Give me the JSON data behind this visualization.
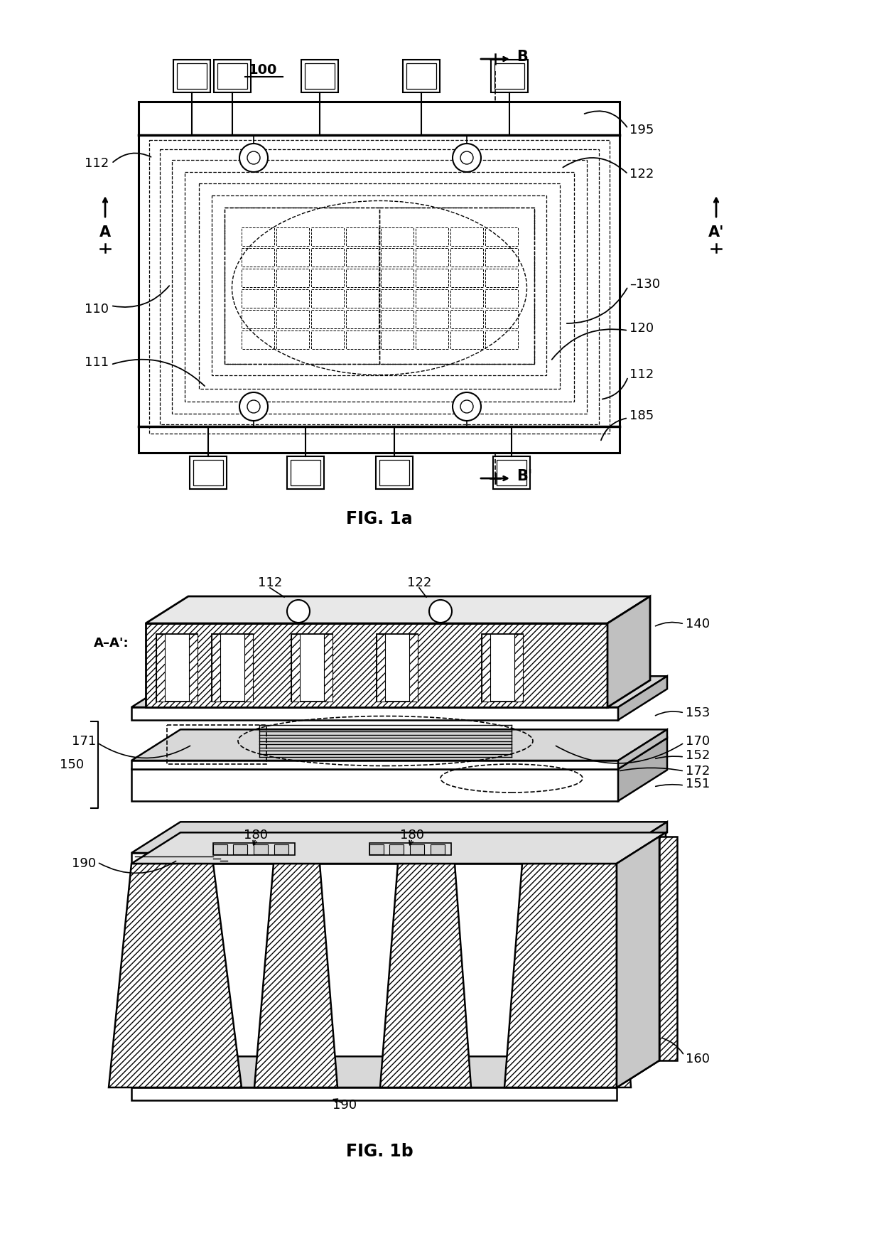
{
  "fig_width": 12.4,
  "fig_height": 17.46,
  "dpi": 100,
  "bg_color": "#ffffff"
}
